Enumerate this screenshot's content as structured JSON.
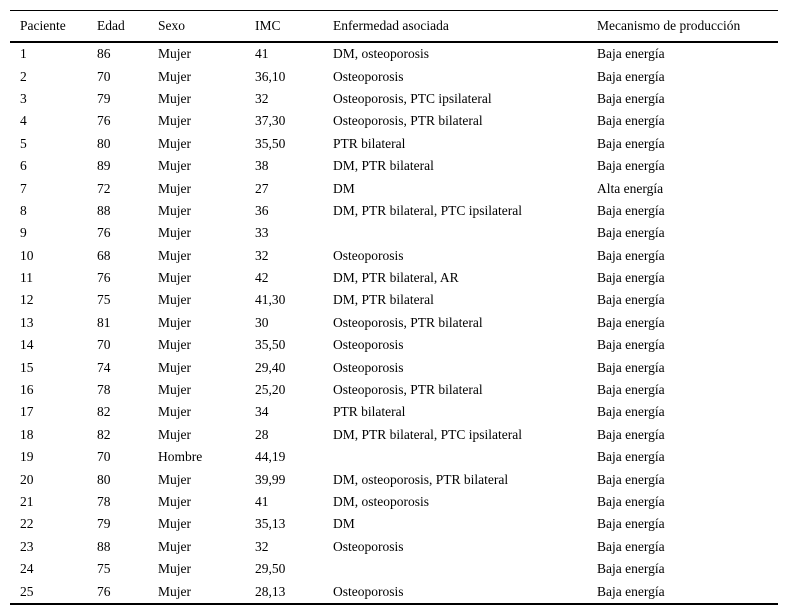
{
  "table": {
    "columns": [
      "Paciente",
      "Edad",
      "Sexo",
      "IMC",
      "Enfermedad asociada",
      "Mecanismo de producción"
    ],
    "rows": [
      [
        "1",
        "86",
        "Mujer",
        "41",
        "DM, osteoporosis",
        "Baja energía"
      ],
      [
        "2",
        "70",
        "Mujer",
        "36,10",
        "Osteoporosis",
        "Baja energía"
      ],
      [
        "3",
        "79",
        "Mujer",
        "32",
        "Osteoporosis, PTC ipsilateral",
        "Baja energía"
      ],
      [
        "4",
        "76",
        "Mujer",
        "37,30",
        "Osteoporosis, PTR bilateral",
        "Baja energía"
      ],
      [
        "5",
        "80",
        "Mujer",
        "35,50",
        "PTR bilateral",
        "Baja energía"
      ],
      [
        "6",
        "89",
        "Mujer",
        "38",
        "DM, PTR bilateral",
        "Baja energía"
      ],
      [
        "7",
        "72",
        "Mujer",
        "27",
        "DM",
        "Alta energía"
      ],
      [
        "8",
        "88",
        "Mujer",
        "36",
        "DM, PTR bilateral, PTC ipsilateral",
        "Baja energía"
      ],
      [
        "9",
        "76",
        "Mujer",
        "33",
        "",
        "Baja energía"
      ],
      [
        "10",
        "68",
        "Mujer",
        "32",
        "Osteoporosis",
        "Baja energía"
      ],
      [
        "11",
        "76",
        "Mujer",
        "42",
        "DM, PTR bilateral, AR",
        "Baja energía"
      ],
      [
        "12",
        "75",
        "Mujer",
        "41,30",
        "DM, PTR bilateral",
        "Baja energía"
      ],
      [
        "13",
        "81",
        "Mujer",
        "30",
        "Osteoporosis, PTR bilateral",
        "Baja energía"
      ],
      [
        "14",
        "70",
        "Mujer",
        "35,50",
        "Osteoporosis",
        "Baja energía"
      ],
      [
        "15",
        "74",
        "Mujer",
        "29,40",
        "Osteoporosis",
        "Baja energía"
      ],
      [
        "16",
        "78",
        "Mujer",
        "25,20",
        "Osteoporosis, PTR bilateral",
        "Baja energía"
      ],
      [
        "17",
        "82",
        "Mujer",
        "34",
        "PTR bilateral",
        "Baja energía"
      ],
      [
        "18",
        "82",
        "Mujer",
        "28",
        "DM, PTR bilateral, PTC ipsilateral",
        "Baja energía"
      ],
      [
        "19",
        "70",
        "Hombre",
        "44,19",
        "",
        "Baja energía"
      ],
      [
        "20",
        "80",
        "Mujer",
        "39,99",
        "DM, osteoporosis, PTR bilateral",
        "Baja energía"
      ],
      [
        "21",
        "78",
        "Mujer",
        "41",
        "DM, osteoporosis",
        "Baja energía"
      ],
      [
        "22",
        "79",
        "Mujer",
        "35,13",
        "DM",
        "Baja energía"
      ],
      [
        "23",
        "88",
        "Mujer",
        "32",
        "Osteoporosis",
        "Baja energía"
      ],
      [
        "24",
        "75",
        "Mujer",
        "29,50",
        "",
        "Baja energía"
      ],
      [
        "25",
        "76",
        "Mujer",
        "28,13",
        "Osteoporosis",
        "Baja energía"
      ]
    ]
  }
}
